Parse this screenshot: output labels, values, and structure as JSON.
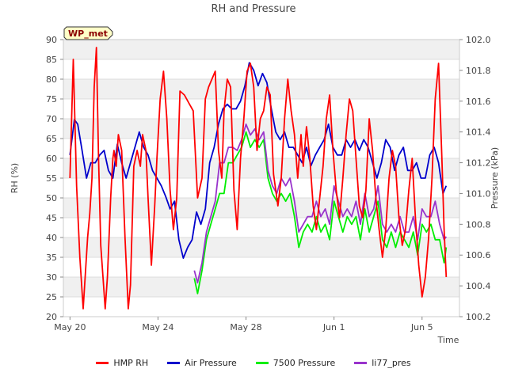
{
  "chart_data": {
    "type": "line",
    "title": "RH and Pressure",
    "xlabel": "Time",
    "ylabel": "RH (%)",
    "y2label": "Pressure (kPa)",
    "badge": "WP_met",
    "x_ticks": [
      "May 20",
      "May 24",
      "May 28",
      "Jun 1",
      "Jun 5"
    ],
    "x_tick_days": [
      0,
      4,
      8,
      12,
      16
    ],
    "xlim_days": [
      -0.3,
      17.7
    ],
    "ylim": [
      20,
      90
    ],
    "y_ticks": [
      20,
      25,
      30,
      35,
      40,
      45,
      50,
      55,
      60,
      65,
      70,
      75,
      80,
      85,
      90
    ],
    "y2lim": [
      100.2,
      102.0
    ],
    "y2_ticks": [
      100.2,
      100.4,
      100.6,
      100.8,
      101.0,
      101.2,
      101.4,
      101.6,
      101.8,
      102.0
    ],
    "grid": true,
    "legend_position": "bottom",
    "series": [
      {
        "name": "HMP RH",
        "color": "#ff0000",
        "axis": "left",
        "x_days": [
          0.0,
          0.15,
          0.3,
          0.45,
          0.6,
          0.8,
          0.9,
          1.0,
          1.1,
          1.2,
          1.3,
          1.4,
          1.6,
          1.7,
          1.85,
          1.95,
          2.0,
          2.1,
          2.2,
          2.35,
          2.5,
          2.65,
          2.75,
          2.9,
          3.05,
          3.2,
          3.3,
          3.45,
          3.55,
          3.7,
          3.85,
          3.95,
          4.1,
          4.25,
          4.4,
          4.55,
          4.7,
          4.85,
          5.0,
          5.2,
          5.4,
          5.6,
          5.8,
          6.0,
          6.15,
          6.3,
          6.45,
          6.6,
          6.75,
          6.9,
          7.0,
          7.15,
          7.3,
          7.45,
          7.6,
          7.75,
          7.9,
          8.05,
          8.2,
          8.35,
          8.5,
          8.65,
          8.8,
          8.95,
          9.1,
          9.25,
          9.45,
          9.6,
          9.75,
          9.9,
          10.05,
          10.2,
          10.35,
          10.5,
          10.6,
          10.75,
          10.9,
          11.05,
          11.2,
          11.35,
          11.5,
          11.65,
          11.8,
          11.95,
          12.1,
          12.25,
          12.4,
          12.55,
          12.7,
          12.85,
          13.0,
          13.15,
          13.3,
          13.45,
          13.6,
          13.75,
          13.9,
          14.05,
          14.2,
          14.35,
          14.5,
          14.65,
          14.8,
          14.95,
          15.1,
          15.25,
          15.4,
          15.55,
          15.7,
          15.85,
          16.0,
          16.15,
          16.3,
          16.45,
          16.6,
          16.75,
          16.9,
          17.0,
          17.1
        ],
        "values": [
          55,
          85,
          53,
          35,
          22,
          40,
          46,
          55,
          78,
          88,
          60,
          38,
          22,
          30,
          50,
          60,
          62,
          58,
          66,
          62,
          40,
          22,
          28,
          58,
          62,
          58,
          66,
          62,
          50,
          33,
          48,
          60,
          75,
          82,
          70,
          52,
          42,
          50,
          77,
          76,
          74,
          72,
          50,
          55,
          75,
          78,
          80,
          82,
          62,
          55,
          72,
          80,
          78,
          52,
          42,
          60,
          70,
          82,
          84,
          78,
          62,
          70,
          72,
          78,
          76,
          56,
          48,
          55,
          70,
          80,
          72,
          66,
          55,
          66,
          58,
          68,
          60,
          48,
          42,
          50,
          58,
          70,
          76,
          62,
          52,
          45,
          55,
          66,
          75,
          72,
          60,
          48,
          45,
          52,
          70,
          62,
          50,
          42,
          35,
          42,
          55,
          62,
          58,
          45,
          38,
          42,
          52,
          60,
          45,
          33,
          25,
          30,
          40,
          55,
          75,
          84,
          60,
          42,
          30
        ],
        "legend_label": "HMP RH"
      },
      {
        "name": "Air Pressure",
        "color": "#0000cc",
        "axis": "right",
        "x_days": [
          0.0,
          0.2,
          0.35,
          0.55,
          0.75,
          0.95,
          1.15,
          1.35,
          1.55,
          1.75,
          1.95,
          2.15,
          2.35,
          2.55,
          2.75,
          2.95,
          3.15,
          3.35,
          3.55,
          3.75,
          3.95,
          4.15,
          4.35,
          4.55,
          4.75,
          4.95,
          5.15,
          5.35,
          5.55,
          5.75,
          5.95,
          6.15,
          6.35,
          6.55,
          6.75,
          6.95,
          7.15,
          7.35,
          7.55,
          7.75,
          7.95,
          8.15,
          8.35,
          8.55,
          8.75,
          8.95,
          9.15,
          9.35,
          9.55,
          9.75,
          9.95,
          10.15,
          10.35,
          10.55,
          10.75,
          10.95,
          11.15,
          11.35,
          11.55,
          11.75,
          11.95,
          12.15,
          12.35,
          12.55,
          12.75,
          12.95,
          13.15,
          13.35,
          13.55,
          13.75,
          13.95,
          14.15,
          14.35,
          14.55,
          14.75,
          14.95,
          15.15,
          15.35,
          15.55,
          15.75,
          15.95,
          16.15,
          16.35,
          16.55,
          16.75,
          16.95,
          17.1
        ],
        "values": [
          101.25,
          101.48,
          101.45,
          101.28,
          101.1,
          101.2,
          101.2,
          101.25,
          101.28,
          101.15,
          101.1,
          101.32,
          101.2,
          101.1,
          101.2,
          101.3,
          101.4,
          101.3,
          101.25,
          101.15,
          101.1,
          101.05,
          100.98,
          100.9,
          100.95,
          100.7,
          100.58,
          100.65,
          100.7,
          100.88,
          100.8,
          100.9,
          101.2,
          101.3,
          101.45,
          101.55,
          101.58,
          101.55,
          101.55,
          101.6,
          101.7,
          101.85,
          101.8,
          101.7,
          101.78,
          101.72,
          101.55,
          101.4,
          101.35,
          101.4,
          101.3,
          101.3,
          101.25,
          101.2,
          101.3,
          101.18,
          101.25,
          101.3,
          101.35,
          101.45,
          101.3,
          101.25,
          101.25,
          101.35,
          101.3,
          101.35,
          101.28,
          101.35,
          101.3,
          101.2,
          101.1,
          101.2,
          101.35,
          101.3,
          101.15,
          101.25,
          101.3,
          101.15,
          101.15,
          101.2,
          101.1,
          101.1,
          101.25,
          101.3,
          101.2,
          101.0,
          101.05
        ],
        "legend_label": "Air Pressure"
      },
      {
        "name": "7500 Pressure",
        "color": "#00ee00",
        "axis": "right",
        "x_days": [
          5.65,
          5.8,
          6.0,
          6.2,
          6.4,
          6.6,
          6.8,
          7.0,
          7.2,
          7.4,
          7.6,
          7.8,
          8.0,
          8.2,
          8.4,
          8.6,
          8.8,
          9.0,
          9.2,
          9.4,
          9.6,
          9.8,
          10.0,
          10.2,
          10.4,
          10.6,
          10.8,
          11.0,
          11.2,
          11.4,
          11.6,
          11.8,
          12.0,
          12.2,
          12.4,
          12.6,
          12.8,
          13.0,
          13.2,
          13.4,
          13.6,
          13.8,
          14.0,
          14.2,
          14.4,
          14.6,
          14.8,
          15.0,
          15.2,
          15.4,
          15.6,
          15.8,
          16.0,
          16.2,
          16.4,
          16.6,
          16.8,
          17.0,
          17.1
        ],
        "values": [
          100.45,
          100.35,
          100.5,
          100.7,
          100.8,
          100.9,
          101.0,
          101.0,
          101.2,
          101.2,
          101.25,
          101.3,
          101.4,
          101.3,
          101.35,
          101.3,
          101.35,
          101.1,
          101.0,
          100.95,
          101.0,
          100.95,
          101.0,
          100.85,
          100.65,
          100.75,
          100.8,
          100.75,
          100.85,
          100.75,
          100.8,
          100.7,
          100.95,
          100.85,
          100.75,
          100.85,
          100.8,
          100.85,
          100.7,
          100.9,
          100.75,
          100.85,
          100.95,
          100.7,
          100.65,
          100.75,
          100.65,
          100.75,
          100.7,
          100.65,
          100.75,
          100.6,
          100.8,
          100.75,
          100.8,
          100.7,
          100.7,
          100.55,
          100.65
        ],
        "legend_label": "7500 Pressure"
      },
      {
        "name": "li77_pres",
        "color": "#9933cc",
        "axis": "right",
        "x_days": [
          5.65,
          5.8,
          6.0,
          6.2,
          6.4,
          6.6,
          6.8,
          7.0,
          7.2,
          7.4,
          7.6,
          7.8,
          8.0,
          8.2,
          8.4,
          8.6,
          8.8,
          9.0,
          9.2,
          9.4,
          9.6,
          9.8,
          10.0,
          10.2,
          10.4,
          10.6,
          10.8,
          11.0,
          11.2,
          11.4,
          11.6,
          11.8,
          12.0,
          12.2,
          12.4,
          12.6,
          12.8,
          13.0,
          13.2,
          13.4,
          13.6,
          13.8,
          14.0,
          14.2,
          14.4,
          14.6,
          14.8,
          15.0,
          15.2,
          15.4,
          15.6,
          15.8,
          16.0,
          16.2,
          16.4,
          16.6,
          16.8,
          17.0,
          17.1
        ],
        "values": [
          100.5,
          100.42,
          100.55,
          100.75,
          100.85,
          100.95,
          101.2,
          101.2,
          101.3,
          101.3,
          101.28,
          101.35,
          101.45,
          101.38,
          101.42,
          101.35,
          101.4,
          101.15,
          101.05,
          101.0,
          101.1,
          101.05,
          101.1,
          100.95,
          100.75,
          100.8,
          100.85,
          100.85,
          100.95,
          100.85,
          100.9,
          100.8,
          101.05,
          100.95,
          100.85,
          100.9,
          100.85,
          100.95,
          100.8,
          101.0,
          100.85,
          100.9,
          101.05,
          100.8,
          100.75,
          100.8,
          100.75,
          100.85,
          100.75,
          100.75,
          100.85,
          100.7,
          100.9,
          100.85,
          100.85,
          100.95,
          100.8,
          100.7,
          100.72
        ],
        "legend_label": "li77_pres"
      }
    ]
  }
}
